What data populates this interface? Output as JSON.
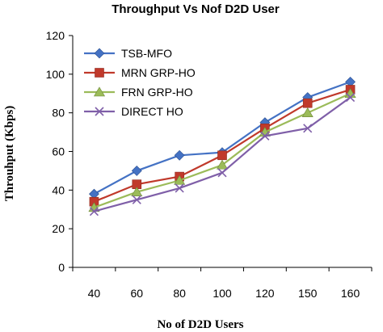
{
  "chart_data": {
    "type": "line",
    "title": "Throughput Vs Nof D2D User",
    "xlabel": "No of D2D Users",
    "ylabel": "Throuhput (Kbps)",
    "categories": [
      "40",
      "60",
      "80",
      "100",
      "120",
      "150",
      "160"
    ],
    "ylim": [
      0,
      120
    ],
    "yticks": [
      0,
      20,
      40,
      60,
      80,
      100,
      120
    ],
    "grid": false,
    "legend_position": "top-left",
    "series": [
      {
        "name": "TSB-MFO",
        "values": [
          38,
          50,
          58,
          59.5,
          75,
          88,
          96
        ],
        "color": "#4472c4",
        "marker": "diamond"
      },
      {
        "name": "MRN GRP-HO",
        "values": [
          34,
          43,
          47,
          58,
          72,
          85,
          92
        ],
        "color": "#c0392b",
        "marker": "square"
      },
      {
        "name": "FRN GRP-HO",
        "values": [
          31,
          39,
          45,
          53,
          70,
          80,
          90
        ],
        "color": "#9bbb59",
        "marker": "triangle"
      },
      {
        "name": "DIRECT HO",
        "values": [
          29,
          35,
          41,
          49,
          68,
          72,
          88
        ],
        "color": "#7f5fa8",
        "marker": "x"
      }
    ]
  }
}
